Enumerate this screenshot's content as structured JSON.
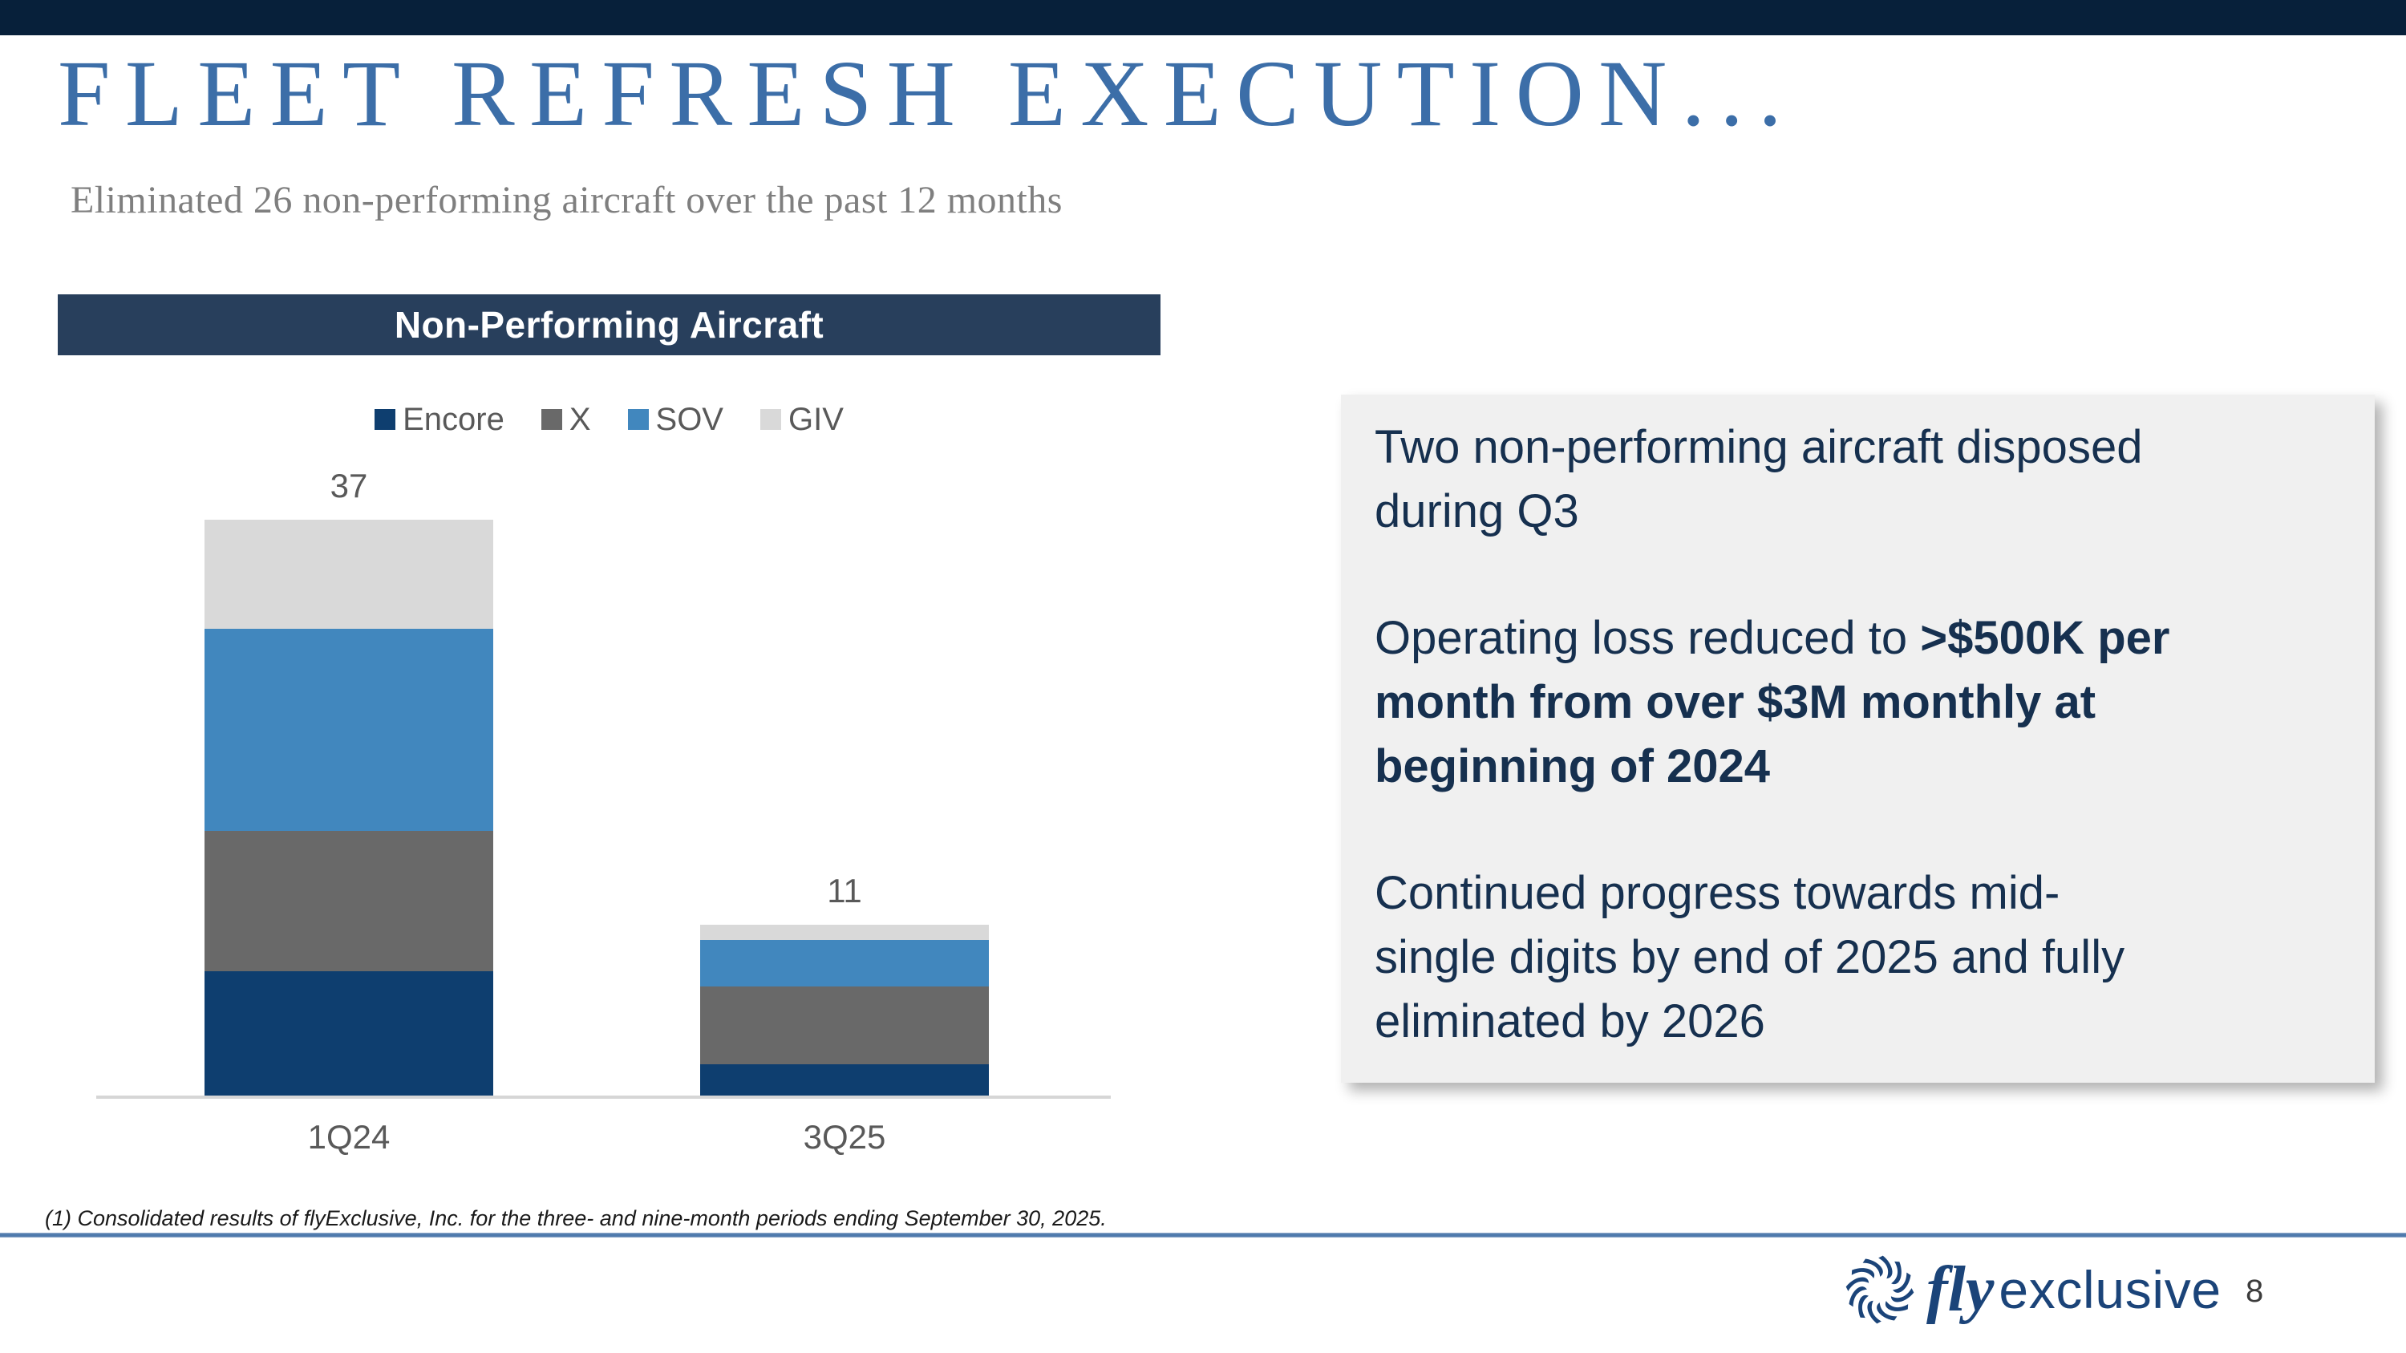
{
  "slide": {
    "title": "FLEET REFRESH EXECUTION...",
    "subtitle": "Eliminated 26 non-performing aircraft over the past 12 months",
    "footnote": "(1) Consolidated results of flyExclusive, Inc. for the three- and nine-month periods ending September 30, 2025.",
    "page_number": "8",
    "top_bar_color": "#07203A",
    "accent_line_color": "#4E79AC"
  },
  "chart": {
    "header": "Non-Performing Aircraft",
    "header_bg": "#283F5C"
  },
  "chart_data": {
    "type": "bar",
    "stacked": true,
    "title": "Non-Performing Aircraft",
    "categories": [
      "1Q24",
      "3Q25"
    ],
    "series": [
      {
        "name": "Encore",
        "color": "#0E3E6F",
        "values": [
          8,
          2
        ]
      },
      {
        "name": "X",
        "color": "#696969",
        "values": [
          9,
          5
        ]
      },
      {
        "name": "SOV",
        "color": "#4187BE",
        "values": [
          13,
          3
        ]
      },
      {
        "name": "GIV",
        "color": "#D9D9D9",
        "values": [
          7,
          1
        ]
      }
    ],
    "totals": [
      37,
      11
    ],
    "ylim": [
      0,
      40
    ],
    "grid": false,
    "legend_position": "top",
    "axis_color": "#D6D6D6",
    "label_color": "#595959"
  },
  "callout": {
    "bg": "#F0F0F0",
    "text_color": "#16304F",
    "p1": "Two non-performing aircraft disposed\nduring Q3",
    "p2_normal": "Operating loss reduced to ",
    "p2_bold": ">$500K per\nmonth from over $3M monthly at\nbeginning of 2024",
    "p3": "Continued progress towards mid-\nsingle digits by end of 2025 and fully\neliminated by 2026"
  },
  "logo": {
    "icon": "pinwheel-swirl-icon",
    "fly": "fly",
    "exclusive": "exclusive",
    "color": "#1B4479"
  }
}
